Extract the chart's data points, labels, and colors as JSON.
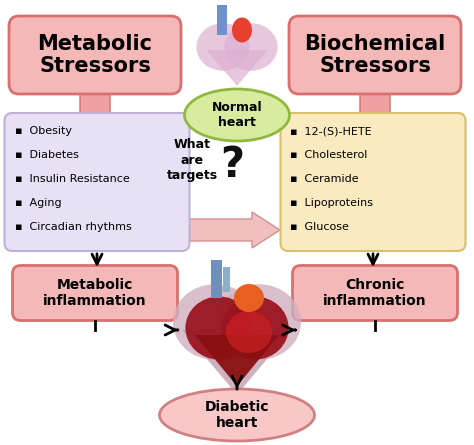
{
  "background_color": "#ffffff",
  "metabolic_title": "Metabolic\nStressors",
  "biochemical_title": "Biochemical\nStressors",
  "metabolic_items": [
    "Obesity",
    "Diabetes",
    "Insulin Resistance",
    "Aging",
    "Circadian rhythms"
  ],
  "biochemical_items": [
    "12-(S)-HETE",
    "Cholesterol",
    "Ceramide",
    "Lipoproteins",
    "Glucose"
  ],
  "normal_heart_label": "Normal\nheart",
  "what_are_targets": "What\nare\ntargets",
  "metabolic_inflammation": "Metabolic\ninflammation",
  "chronic_inflammation": "Chronic\ninflammation",
  "diabetic_heart": "Diabetic\nheart",
  "top_box_fill": "#f4b8b8",
  "top_box_border": "#d87070",
  "left_box_bg": "#e8e0f5",
  "left_box_border": "#c0b0d8",
  "right_box_bg": "#faeac0",
  "right_box_border": "#d8c070",
  "bottom_box_fill": "#f4b8b8",
  "bottom_box_border": "#d87070",
  "normal_ellipse_fill": "#d8eca0",
  "normal_ellipse_border": "#90b840",
  "diabetic_ellipse_fill": "#f8c8c8",
  "diabetic_ellipse_border": "#d08080",
  "big_arrow_fill": "#f0a0a0",
  "big_arrow_edge": "#d07070",
  "right_arrow_fill": "#f0c0c0",
  "right_arrow_edge": "#d09090"
}
